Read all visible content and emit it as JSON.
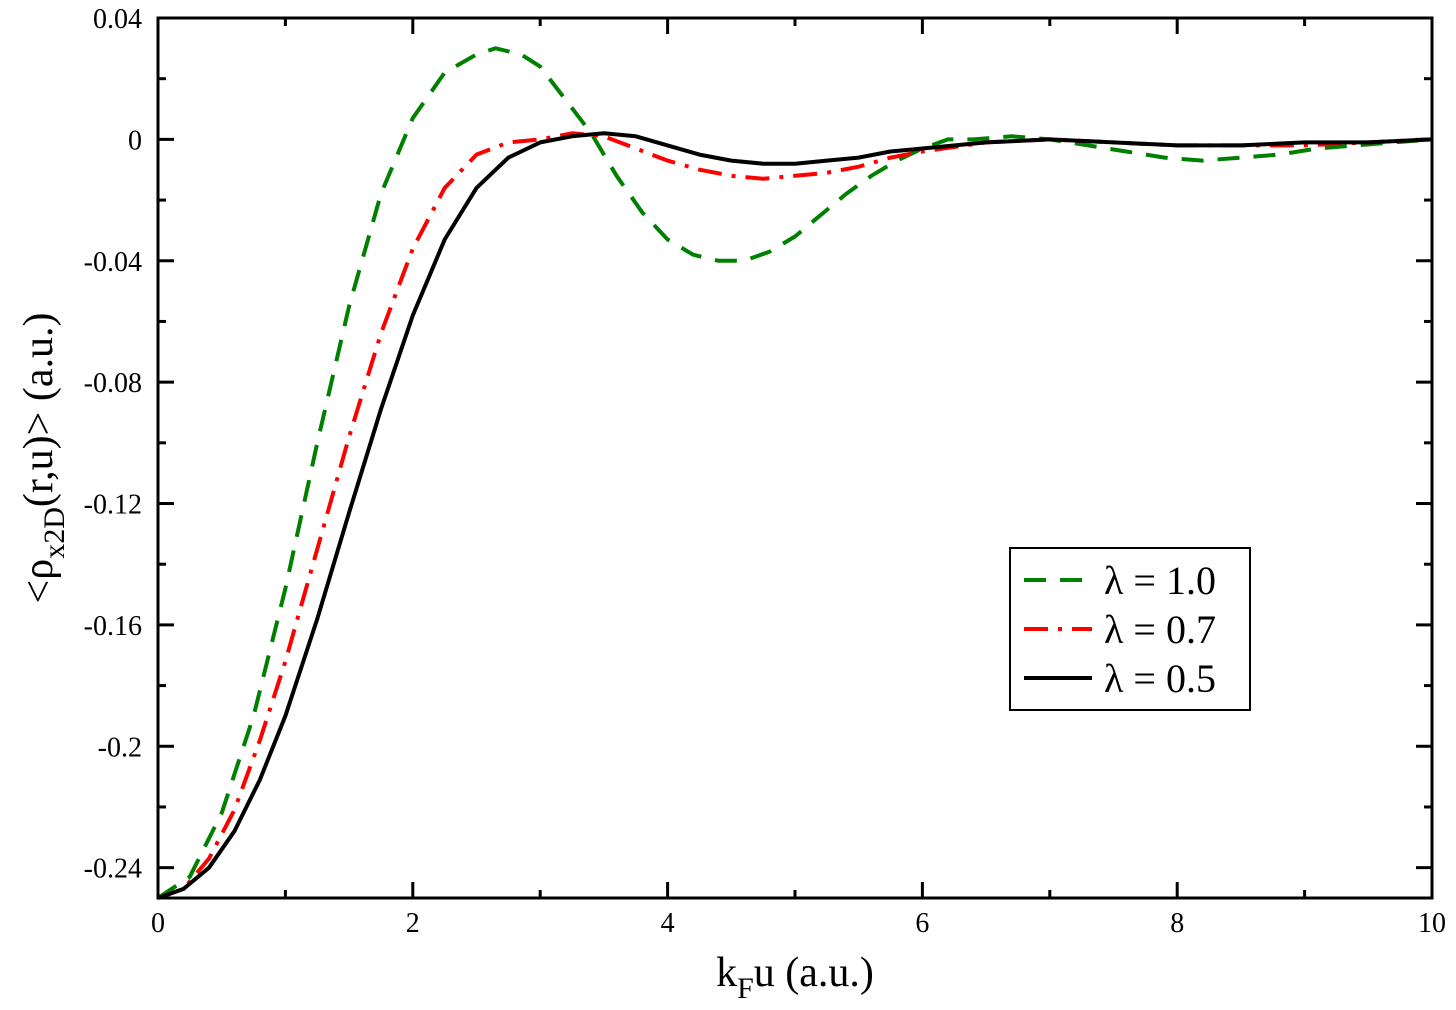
{
  "chart_data": {
    "type": "line",
    "title": "",
    "xlabel": {
      "main": "k",
      "sub": "F",
      "rest": "u (a.u.)"
    },
    "ylabel": {
      "pre": "<ρ",
      "sub": "x2D",
      "post": "(r,u)> (a.u.)"
    },
    "xlim": [
      0,
      10
    ],
    "ylim": [
      -0.25,
      0.04
    ],
    "xticks": [
      0,
      2,
      4,
      6,
      8,
      10
    ],
    "xtick_labels": [
      "0",
      "2",
      "4",
      "6",
      "8",
      "10"
    ],
    "yticks": [
      0.04,
      0,
      -0.04,
      -0.08,
      -0.12,
      -0.16,
      -0.2,
      -0.24
    ],
    "ytick_labels": [
      "0.04",
      "0",
      "-0.04",
      "-0.08",
      "-0.12",
      "-0.16",
      "-0.2",
      "-0.24"
    ],
    "grid": false,
    "legend_position": "lower-right",
    "series": [
      {
        "name": "λ = 1.0",
        "color": "#008000",
        "style": "dashed",
        "x": [
          0,
          0.25,
          0.5,
          0.75,
          1.0,
          1.25,
          1.5,
          1.75,
          2.0,
          2.25,
          2.5,
          2.65,
          2.85,
          3.0,
          3.2,
          3.4,
          3.6,
          3.8,
          4.0,
          4.2,
          4.4,
          4.6,
          4.8,
          5.0,
          5.2,
          5.4,
          5.6,
          5.8,
          6.0,
          6.2,
          6.4,
          6.7,
          7.0,
          7.3,
          7.6,
          7.9,
          8.2,
          8.5,
          8.8,
          9.1,
          9.4,
          9.7,
          10.0
        ],
        "y": [
          -0.25,
          -0.243,
          -0.222,
          -0.19,
          -0.148,
          -0.1,
          -0.055,
          -0.018,
          0.007,
          0.022,
          0.028,
          0.03,
          0.028,
          0.024,
          0.013,
          0.002,
          -0.012,
          -0.024,
          -0.033,
          -0.038,
          -0.04,
          -0.04,
          -0.037,
          -0.032,
          -0.025,
          -0.018,
          -0.012,
          -0.007,
          -0.003,
          0.0,
          0.0,
          0.001,
          0.0,
          -0.002,
          -0.004,
          -0.006,
          -0.007,
          -0.006,
          -0.005,
          -0.003,
          -0.002,
          -0.001,
          0.0
        ]
      },
      {
        "name": "λ = 0.7",
        "color": "#ff0000",
        "style": "dash-dot",
        "x": [
          0,
          0.2,
          0.4,
          0.6,
          0.8,
          1.0,
          1.25,
          1.5,
          1.75,
          2.0,
          2.25,
          2.5,
          2.75,
          3.0,
          3.25,
          3.5,
          3.75,
          4.0,
          4.25,
          4.5,
          4.75,
          5.0,
          5.25,
          5.5,
          5.75,
          6.0,
          6.5,
          7.0,
          7.5,
          8.0,
          8.5,
          9.0,
          9.5,
          10.0
        ],
        "y": [
          -0.25,
          -0.247,
          -0.237,
          -0.221,
          -0.198,
          -0.172,
          -0.135,
          -0.098,
          -0.064,
          -0.036,
          -0.016,
          -0.005,
          -0.001,
          0.0,
          0.002,
          0.001,
          -0.003,
          -0.007,
          -0.01,
          -0.012,
          -0.013,
          -0.012,
          -0.011,
          -0.009,
          -0.006,
          -0.004,
          -0.001,
          0.0,
          -0.001,
          -0.002,
          -0.002,
          -0.002,
          -0.001,
          0.0
        ]
      },
      {
        "name": "λ = 0.5",
        "color": "#000000",
        "style": "solid",
        "x": [
          0,
          0.2,
          0.4,
          0.6,
          0.8,
          1.0,
          1.25,
          1.5,
          1.75,
          2.0,
          2.25,
          2.5,
          2.75,
          3.0,
          3.25,
          3.5,
          3.75,
          4.0,
          4.25,
          4.5,
          4.75,
          5.0,
          5.25,
          5.5,
          5.75,
          6.0,
          6.5,
          7.0,
          7.5,
          8.0,
          8.5,
          9.0,
          9.5,
          10.0
        ],
        "y": [
          -0.25,
          -0.247,
          -0.24,
          -0.228,
          -0.211,
          -0.19,
          -0.158,
          -0.123,
          -0.089,
          -0.058,
          -0.033,
          -0.016,
          -0.006,
          -0.001,
          0.001,
          0.002,
          0.001,
          -0.002,
          -0.005,
          -0.007,
          -0.008,
          -0.008,
          -0.007,
          -0.006,
          -0.004,
          -0.003,
          -0.001,
          0.0,
          -0.001,
          -0.002,
          -0.002,
          -0.001,
          -0.001,
          0.0
        ]
      }
    ]
  }
}
